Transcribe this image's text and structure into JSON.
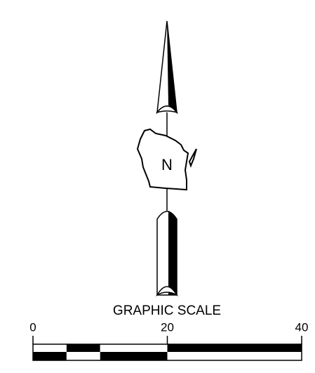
{
  "north_arrow": {
    "label": "N"
  },
  "scale": {
    "title": "GRAPHIC SCALE",
    "ticks": [
      0,
      20,
      40
    ],
    "range": [
      0,
      40
    ]
  }
}
